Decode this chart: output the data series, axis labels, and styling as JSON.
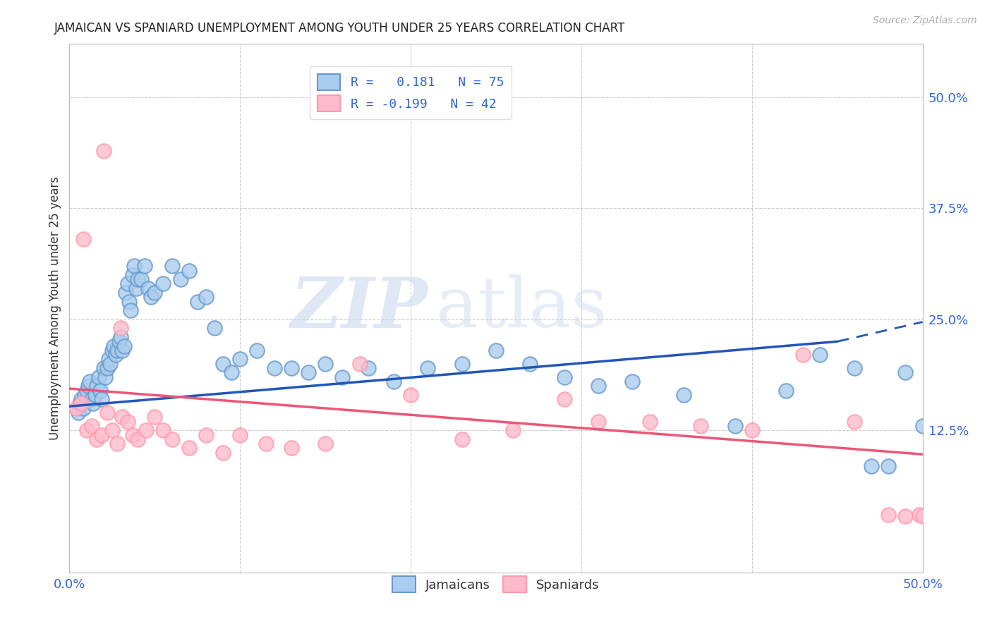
{
  "title": "JAMAICAN VS SPANIARD UNEMPLOYMENT AMONG YOUTH UNDER 25 YEARS CORRELATION CHART",
  "source": "Source: ZipAtlas.com",
  "ylabel": "Unemployment Among Youth under 25 years",
  "xlim": [
    0.0,
    0.5
  ],
  "ylim": [
    -0.035,
    0.56
  ],
  "xticks": [
    0.0,
    0.1,
    0.2,
    0.3,
    0.4,
    0.5
  ],
  "xticklabels_show": [
    "0.0%",
    "",
    "",
    "",
    "",
    "50.0%"
  ],
  "ytick_right_labels": [
    "12.5%",
    "25.0%",
    "37.5%",
    "50.0%"
  ],
  "ytick_right_values": [
    0.125,
    0.25,
    0.375,
    0.5
  ],
  "blue_color": "#6699CC",
  "pink_color": "#FF99AA",
  "blue_fill": "#AACCEE",
  "pink_fill": "#FFBBCC",
  "trend_blue": "#2255BB",
  "trend_pink": "#EE5577",
  "watermark_zip": "ZIP",
  "watermark_atlas": "atlas",
  "jamaicans_x": [
    0.005,
    0.006,
    0.007,
    0.008,
    0.009,
    0.01,
    0.011,
    0.012,
    0.013,
    0.014,
    0.015,
    0.016,
    0.017,
    0.018,
    0.019,
    0.02,
    0.021,
    0.022,
    0.023,
    0.024,
    0.025,
    0.026,
    0.027,
    0.028,
    0.029,
    0.03,
    0.031,
    0.032,
    0.033,
    0.034,
    0.035,
    0.036,
    0.037,
    0.038,
    0.039,
    0.04,
    0.042,
    0.044,
    0.046,
    0.048,
    0.05,
    0.055,
    0.06,
    0.065,
    0.07,
    0.075,
    0.08,
    0.085,
    0.09,
    0.095,
    0.1,
    0.11,
    0.12,
    0.13,
    0.14,
    0.15,
    0.16,
    0.175,
    0.19,
    0.21,
    0.23,
    0.25,
    0.27,
    0.29,
    0.31,
    0.33,
    0.36,
    0.39,
    0.42,
    0.44,
    0.46,
    0.47,
    0.48,
    0.49,
    0.5
  ],
  "jamaicans_y": [
    0.145,
    0.155,
    0.16,
    0.15,
    0.165,
    0.17,
    0.175,
    0.18,
    0.16,
    0.155,
    0.165,
    0.175,
    0.185,
    0.17,
    0.16,
    0.195,
    0.185,
    0.195,
    0.205,
    0.2,
    0.215,
    0.22,
    0.21,
    0.215,
    0.225,
    0.23,
    0.215,
    0.22,
    0.28,
    0.29,
    0.27,
    0.26,
    0.3,
    0.31,
    0.285,
    0.295,
    0.295,
    0.31,
    0.285,
    0.275,
    0.28,
    0.29,
    0.31,
    0.295,
    0.305,
    0.27,
    0.275,
    0.24,
    0.2,
    0.19,
    0.205,
    0.215,
    0.195,
    0.195,
    0.19,
    0.2,
    0.185,
    0.195,
    0.18,
    0.195,
    0.2,
    0.215,
    0.2,
    0.185,
    0.175,
    0.18,
    0.165,
    0.13,
    0.17,
    0.21,
    0.195,
    0.085,
    0.085,
    0.19,
    0.13
  ],
  "spaniards_x": [
    0.004,
    0.007,
    0.01,
    0.013,
    0.016,
    0.019,
    0.022,
    0.025,
    0.028,
    0.031,
    0.034,
    0.037,
    0.04,
    0.045,
    0.05,
    0.055,
    0.06,
    0.07,
    0.08,
    0.09,
    0.1,
    0.115,
    0.13,
    0.15,
    0.17,
    0.2,
    0.23,
    0.26,
    0.29,
    0.31,
    0.34,
    0.37,
    0.4,
    0.43,
    0.46,
    0.48,
    0.49,
    0.498,
    0.5,
    0.02,
    0.008,
    0.03
  ],
  "spaniards_y": [
    0.15,
    0.155,
    0.125,
    0.13,
    0.115,
    0.12,
    0.145,
    0.125,
    0.11,
    0.14,
    0.135,
    0.12,
    0.115,
    0.125,
    0.14,
    0.125,
    0.115,
    0.105,
    0.12,
    0.1,
    0.12,
    0.11,
    0.105,
    0.11,
    0.2,
    0.165,
    0.115,
    0.125,
    0.16,
    0.135,
    0.135,
    0.13,
    0.125,
    0.21,
    0.135,
    0.03,
    0.028,
    0.03,
    0.028,
    0.44,
    0.34,
    0.24
  ],
  "trend_blue_x0": 0.0,
  "trend_blue_y0": 0.152,
  "trend_blue_x1": 0.45,
  "trend_blue_y1": 0.225,
  "trend_blue_dash_x1": 0.5,
  "trend_blue_dash_y1": 0.247,
  "trend_pink_x0": 0.0,
  "trend_pink_y0": 0.172,
  "trend_pink_x1": 0.5,
  "trend_pink_y1": 0.098
}
